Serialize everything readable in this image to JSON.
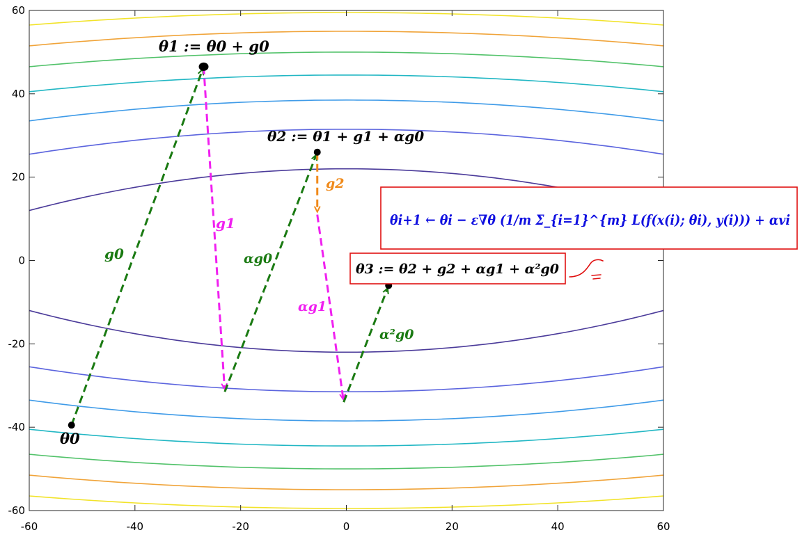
{
  "chart_data": {
    "type": "contour",
    "title": "",
    "xlabel": "",
    "ylabel": "",
    "xlim": [
      -60,
      60
    ],
    "ylim": [
      -60,
      60
    ],
    "xticks": [
      "-60",
      "-40",
      "-20",
      "0",
      "20",
      "40",
      "60"
    ],
    "yticks": [
      "60",
      "40",
      "20",
      "0",
      "-20",
      "-40",
      "-60"
    ],
    "grid": false,
    "contours": [
      {
        "level": 1,
        "center_y": 22.0,
        "edge_y": 12.0,
        "color": "#4b3b9a"
      },
      {
        "level": 2,
        "center_y": 31.5,
        "edge_y": 25.5,
        "color": "#5b64de"
      },
      {
        "level": 3,
        "center_y": 38.5,
        "edge_y": 33.5,
        "color": "#3f9be8"
      },
      {
        "level": 4,
        "center_y": 44.5,
        "edge_y": 40.5,
        "color": "#22b7c4"
      },
      {
        "level": 5,
        "center_y": 50.0,
        "edge_y": 46.5,
        "color": "#52c26a"
      },
      {
        "level": 6,
        "center_y": 55.0,
        "edge_y": 51.5,
        "color": "#f0a43a"
      },
      {
        "level": 7,
        "center_y": 59.5,
        "edge_y": 56.5,
        "color": "#f2e32a"
      }
    ],
    "points": [
      {
        "name": "theta0",
        "x": -52,
        "y": -39.5
      },
      {
        "name": "theta1",
        "x": -27,
        "y": 46.5
      },
      {
        "name": "p_a",
        "x": -23,
        "y": -31.5
      },
      {
        "name": "theta2",
        "x": -5.5,
        "y": 26
      },
      {
        "name": "p_b",
        "x": -5.5,
        "y": 11
      },
      {
        "name": "p_c",
        "x": -0.5,
        "y": -34
      },
      {
        "name": "theta3",
        "x": 8,
        "y": -6
      }
    ],
    "steps": [
      {
        "label": "g0",
        "from": [
          -52,
          -39.5
        ],
        "to": [
          -27,
          46.5
        ],
        "color": "#1a7a12"
      },
      {
        "label": "g1",
        "from": [
          -27,
          46.5
        ],
        "to": [
          -23,
          -31.5
        ],
        "color": "#f020f0"
      },
      {
        "label": "αg0",
        "from": [
          -23,
          -31.5
        ],
        "to": [
          -5.5,
          26
        ],
        "color": "#1a7a12"
      },
      {
        "label": "g2",
        "from": [
          -5.5,
          26
        ],
        "to": [
          -5.5,
          11
        ],
        "color": "#f08a1a"
      },
      {
        "label": "αg1",
        "from": [
          -5.5,
          11
        ],
        "to": [
          -0.5,
          -34
        ],
        "color": "#f020f0"
      },
      {
        "label": "α²g0",
        "from": [
          -0.5,
          -34
        ],
        "to": [
          8,
          -6
        ],
        "color": "#1a7a12"
      }
    ]
  },
  "colors": {
    "green_step": "#1a7a12",
    "magenta_step": "#f020f0",
    "orange_step": "#f08a1a",
    "box_red": "#e01010",
    "blue_term": "#1010e0",
    "bright_green": "#2bd02b"
  },
  "labels": {
    "theta0": "θ0",
    "theta1": "θ1 := θ0 + g0",
    "theta2": "θ2 := θ1 + g1 + αg0",
    "theta3": "θ3 := θ2 + g2 + αg1 + α²g0",
    "update_rule": "θi+1 ← θi − ε∇θ (1/m Σ_{i=1}^{m} L(f(x(i); θi), y(i))) + αvi",
    "step_g0": "g0",
    "step_g1": "g1",
    "step_ag0": "αg0",
    "step_g2": "g2",
    "step_ag1": "αg1",
    "step_a2g0": "α²g0"
  }
}
